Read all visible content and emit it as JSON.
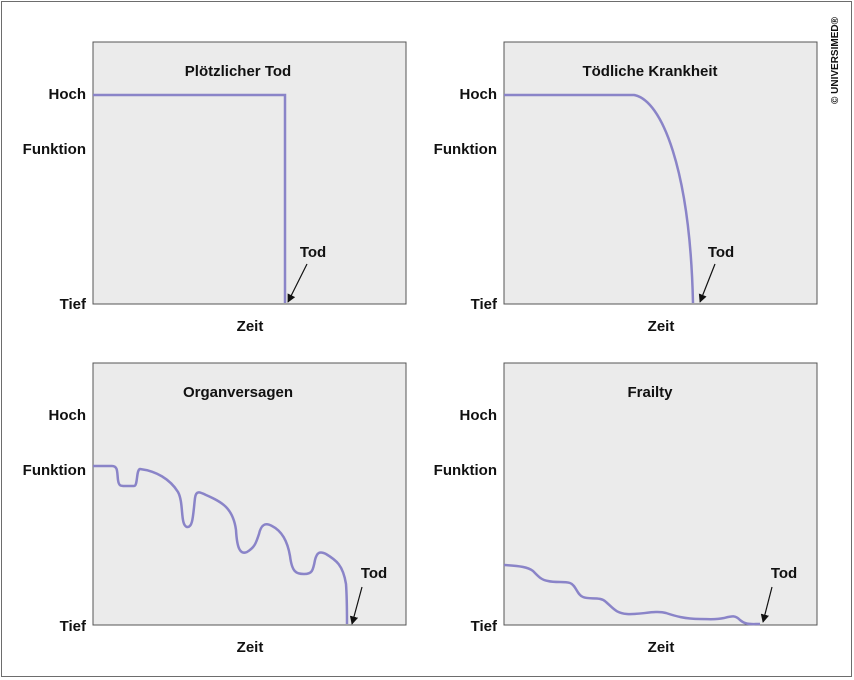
{
  "copyright": "© UNIVERSIMED®",
  "colors": {
    "curve": "#8a84c8",
    "panel": "#ebebeb",
    "border": "#555555",
    "arrow": "#111111"
  },
  "chart_data": [
    {
      "type": "line",
      "title": "Plötzlicher Tod",
      "xlabel": "Zeit",
      "ylabel": "Funktion",
      "ytick_labels": {
        "top": "Hoch",
        "bottom": "Tief"
      },
      "annotation": {
        "text": "Tod"
      },
      "xlim": [
        0,
        1
      ],
      "ylim": [
        0,
        1
      ],
      "grid": false,
      "series": [
        {
          "x": [
            0,
            0.61,
            0.61
          ],
          "y": [
            0.8,
            0.8,
            0
          ]
        }
      ]
    },
    {
      "type": "line",
      "title": "Tödliche Krankheit",
      "xlabel": "Zeit",
      "ylabel": "Funktion",
      "ytick_labels": {
        "top": "Hoch",
        "bottom": "Tief"
      },
      "annotation": {
        "text": "Tod"
      },
      "xlim": [
        0,
        1
      ],
      "ylim": [
        0,
        1
      ],
      "grid": false,
      "series": [
        {
          "x": [
            0,
            0.42,
            0.5,
            0.55,
            0.58,
            0.6
          ],
          "y": [
            0.8,
            0.8,
            0.7,
            0.5,
            0.25,
            0
          ]
        }
      ]
    },
    {
      "type": "line",
      "title": "Organversagen",
      "xlabel": "Zeit",
      "ylabel": "Funktion",
      "ytick_labels": {
        "top": "Hoch",
        "bottom": "Tief"
      },
      "annotation": {
        "text": "Tod"
      },
      "xlim": [
        0,
        1
      ],
      "ylim": [
        0,
        1
      ],
      "grid": false,
      "series": [
        {
          "x": [
            0,
            0.07,
            0.08,
            0.14,
            0.15,
            0.24,
            0.29,
            0.33,
            0.45,
            0.47,
            0.5,
            0.54,
            0.58,
            0.64,
            0.68,
            0.71,
            0.79,
            0.82
          ],
          "y": [
            0.61,
            0.61,
            0.54,
            0.54,
            0.6,
            0.54,
            0.4,
            0.51,
            0.42,
            0.28,
            0.28,
            0.38,
            0.32,
            0.22,
            0.22,
            0.28,
            0.2,
            0
          ]
        }
      ]
    },
    {
      "type": "line",
      "title": "Frailty",
      "xlabel": "Zeit",
      "ylabel": "Funktion",
      "ytick_labels": {
        "top": "Hoch",
        "bottom": "Tief"
      },
      "annotation": {
        "text": "Tod"
      },
      "xlim": [
        0,
        1
      ],
      "ylim": [
        0,
        1
      ],
      "grid": false,
      "series": [
        {
          "x": [
            0,
            0.07,
            0.12,
            0.21,
            0.25,
            0.32,
            0.39,
            0.51,
            0.57,
            0.7,
            0.73,
            0.76,
            0.8
          ],
          "y": [
            0.23,
            0.22,
            0.17,
            0.16,
            0.11,
            0.1,
            0.05,
            0.06,
            0.03,
            0.03,
            0.04,
            0.01,
            0.01
          ]
        }
      ]
    }
  ]
}
